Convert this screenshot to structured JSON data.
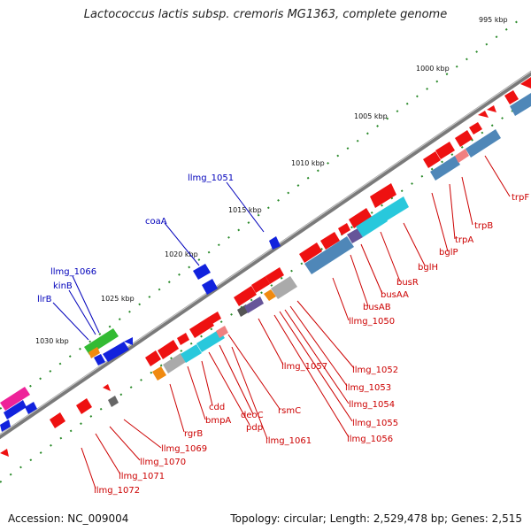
{
  "title": "Lactococcus lactis subsp. cremoris MG1363, complete genome",
  "footer": {
    "accession": "Accession: NC_009004",
    "topology": "Topology: circular; Length: 2,529,478 bp; Genes: 2,515"
  },
  "ticks": [
    "995 kbp",
    "1000 kbp",
    "1005 kbp",
    "1010 kbp",
    "1015 kbp",
    "1020 kbp",
    "1025 kbp",
    "1030 kbp"
  ],
  "blue_labels": [
    "llmg_1051",
    "coaA",
    "llmg_1066",
    "kinB",
    "llrB"
  ],
  "red_labels": [
    "trpF",
    "trpB",
    "trpA",
    "bglP",
    "bglH",
    "busR",
    "busAA",
    "busAB",
    "llmg_1050",
    "llmg_1052",
    "llmg_1053",
    "llmg_1054",
    "llmg_1055",
    "llmg_1056",
    "llmg_1057",
    "rsmC",
    "deoC",
    "pdp",
    "llmg_1061",
    "cdd",
    "bmpA",
    "rgrB",
    "llmg_1069",
    "llmg_1070",
    "llmg_1071",
    "llmg_1072"
  ],
  "colors": {
    "red": "#ee1111",
    "blue": "#1122dd",
    "steel": "#4f87b8",
    "cyan": "#28c8dc",
    "green": "#33bb33",
    "orange": "#f08a10",
    "magenta": "#ee2299",
    "purple": "#665599",
    "gray": "#aaaaaa",
    "ticks": "#2a8a2a",
    "backbone": "#7a7a7a",
    "label_red": "#cc0000",
    "label_blue": "#0000bb"
  }
}
